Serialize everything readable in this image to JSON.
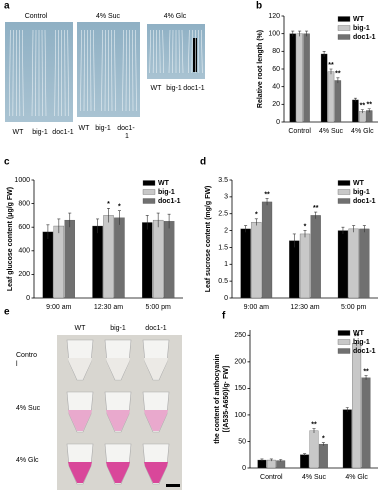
{
  "chart_data": [
    {
      "panel": "b",
      "type": "bar",
      "categories": [
        "Control",
        "4% Suc",
        "4% Glc"
      ],
      "series": [
        {
          "name": "WT",
          "color": "#000000",
          "values": [
            100,
            77,
            25
          ],
          "errors": [
            3,
            3,
            2
          ],
          "annotations": [
            null,
            null,
            null
          ]
        },
        {
          "name": "big-1",
          "color": "#c8c8c8",
          "values": [
            100,
            57,
            12
          ],
          "errors": [
            3,
            3,
            2
          ],
          "annotations": [
            null,
            "**",
            "**"
          ]
        },
        {
          "name": "doc1-1",
          "color": "#707070",
          "values": [
            100,
            47,
            13
          ],
          "errors": [
            3,
            3,
            2
          ],
          "annotations": [
            null,
            "**",
            "**"
          ]
        }
      ],
      "ylabel": "Relative root length (%)",
      "ylim": [
        0,
        120
      ],
      "yticks": [
        0,
        20,
        40,
        60,
        80,
        100,
        120
      ],
      "legend": "upper right"
    },
    {
      "panel": "c",
      "type": "bar",
      "categories": [
        "9:00 am",
        "12:30 am",
        "5:00 pm"
      ],
      "series": [
        {
          "name": "WT",
          "color": "#000000",
          "values": [
            560,
            610,
            640
          ],
          "errors": [
            60,
            60,
            60
          ],
          "annotations": [
            null,
            null,
            null
          ]
        },
        {
          "name": "big-1",
          "color": "#c8c8c8",
          "values": [
            610,
            700,
            660
          ],
          "errors": [
            60,
            60,
            60
          ],
          "annotations": [
            null,
            "*",
            null
          ]
        },
        {
          "name": "doc1-1",
          "color": "#707070",
          "values": [
            660,
            680,
            650
          ],
          "errors": [
            60,
            60,
            60
          ],
          "annotations": [
            null,
            "*",
            null
          ]
        }
      ],
      "ylabel": "Leaf glucose content (μg/g FW)",
      "ylim": [
        0,
        1000
      ],
      "yticks": [
        0,
        200,
        400,
        600,
        800,
        1000
      ],
      "legend": "upper right"
    },
    {
      "panel": "d",
      "type": "bar",
      "categories": [
        "9:00 am",
        "12:30 am",
        "5:00 pm"
      ],
      "series": [
        {
          "name": "WT",
          "color": "#000000",
          "values": [
            2.05,
            1.7,
            2.0
          ],
          "errors": [
            0.1,
            0.2,
            0.1
          ],
          "annotations": [
            null,
            null,
            null
          ]
        },
        {
          "name": "big-1",
          "color": "#c8c8c8",
          "values": [
            2.25,
            1.9,
            2.05
          ],
          "errors": [
            0.1,
            0.1,
            0.1
          ],
          "annotations": [
            "*",
            "*",
            null
          ]
        },
        {
          "name": "doc1-1",
          "color": "#707070",
          "values": [
            2.85,
            2.45,
            2.05
          ],
          "errors": [
            0.1,
            0.1,
            0.1
          ],
          "annotations": [
            "**",
            "**",
            null
          ]
        }
      ],
      "ylabel": "Leaf sucrose content (mg/g FW)",
      "ylim": [
        0,
        3.5
      ],
      "yticks": [
        0,
        0.5,
        1,
        1.5,
        2,
        2.5,
        3,
        3.5
      ],
      "legend": "upper right"
    },
    {
      "panel": "f",
      "type": "bar",
      "categories": [
        "Control",
        "4% Suc",
        "4% Glc"
      ],
      "series": [
        {
          "name": "WT",
          "color": "#000000",
          "values": [
            15,
            25,
            110
          ],
          "errors": [
            2,
            2,
            4
          ],
          "annotations": [
            null,
            null,
            null
          ]
        },
        {
          "name": "big-1",
          "color": "#c8c8c8",
          "values": [
            15,
            70,
            235
          ],
          "errors": [
            2,
            4,
            5
          ],
          "annotations": [
            null,
            "**",
            "**"
          ]
        },
        {
          "name": "doc1-1",
          "color": "#707070",
          "values": [
            14,
            45,
            170
          ],
          "errors": [
            2,
            3,
            4
          ],
          "annotations": [
            null,
            "*",
            "**"
          ]
        }
      ],
      "ylabel": [
        "the content of anthocyanin",
        "[(A535-A650)/g· FW]"
      ],
      "ylim": [
        0,
        260
      ],
      "yticks": [
        0,
        50,
        100,
        150,
        200,
        250
      ],
      "legend": "upper right"
    }
  ],
  "figure": {
    "panel_a": {
      "letter": "a",
      "conditions": [
        "Control",
        "4% Suc",
        "4% Glc"
      ],
      "labels_control": [
        "WT",
        "big-1",
        "doc1-1"
      ],
      "labels_suc": [
        "WT",
        "big-1",
        "doc1-",
        "1"
      ],
      "labels_glc": [
        "WT",
        "big-1",
        "doc1-1"
      ]
    },
    "panel_e": {
      "letter": "e",
      "columns": [
        "WT",
        "big-1",
        "doc1-1"
      ],
      "rows": [
        [
          "Contro",
          "l"
        ],
        [
          "4% Suc"
        ],
        [
          "4% Glc"
        ]
      ]
    }
  }
}
